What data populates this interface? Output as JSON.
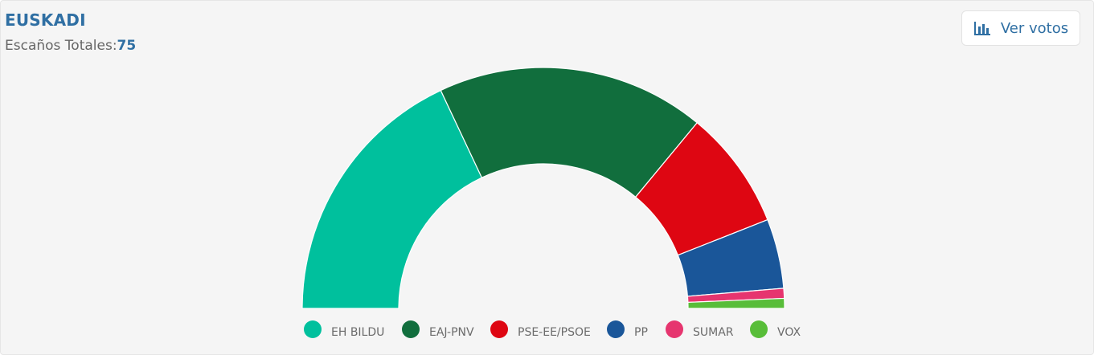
{
  "header": {
    "title": "EUSKADI",
    "subtitle_label": "Escaños Totales:",
    "total_seats": "75"
  },
  "toolbar": {
    "votes_button_label": "Ver votos",
    "votes_button_icon": "bar-chart-icon"
  },
  "chart_data": {
    "type": "pie",
    "subtype": "semicircle-parliament",
    "total": 75,
    "categories": [
      "EH BILDU",
      "EAJ-PNV",
      "PSE-EE/PSOE",
      "PP",
      "SUMAR",
      "VOX"
    ],
    "values": [
      27,
      27,
      12,
      7,
      1,
      1
    ],
    "colors": [
      "#00c09d",
      "#116e3d",
      "#de0612",
      "#1a5699",
      "#e6356f",
      "#58bd39"
    ],
    "legend_position": "bottom"
  }
}
